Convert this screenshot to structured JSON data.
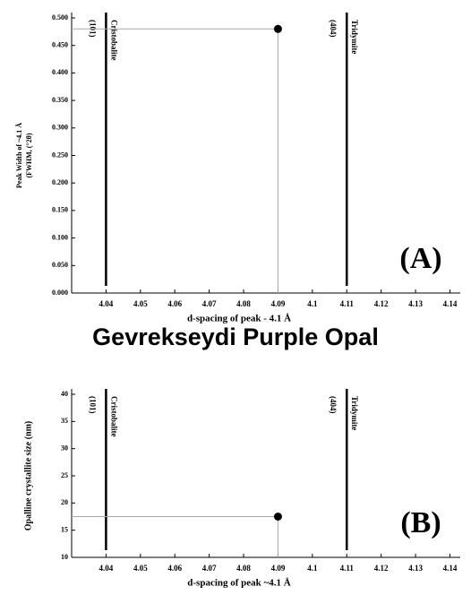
{
  "title": "Gevrekseydi Purple Opal",
  "chart_data": [
    {
      "type": "scatter",
      "annotation": "(A)",
      "ylabel": [
        "Peak Width of ~4.1 Å",
        "(FWHM, (°2θ)"
      ],
      "xlabel": "d-spacing of peak - 4.1 Å",
      "x": [
        4.09
      ],
      "values": [
        0.48
      ],
      "color": "#000000",
      "xlim": [
        4.03,
        4.143
      ],
      "xticks": [
        4.04,
        4.05,
        4.06,
        4.07,
        4.08,
        4.09,
        4.1,
        4.11,
        4.12,
        4.13,
        4.14
      ],
      "ylim": [
        0,
        0.5
      ],
      "yticks": [
        {
          "value": 0,
          "label": "0.000"
        },
        {
          "value": 0.05,
          "label": "0.050"
        },
        {
          "value": 0.1,
          "label": "0.100"
        },
        {
          "value": 0.15,
          "label": "0.150"
        },
        {
          "value": 0.2,
          "label": "0.200"
        },
        {
          "value": 0.25,
          "label": "0.250"
        },
        {
          "value": 0.3,
          "label": "0.300"
        },
        {
          "value": 0.35,
          "label": "0.350"
        },
        {
          "value": 0.4,
          "label": "0.400"
        },
        {
          "value": 0.45,
          "label": "0.450"
        },
        {
          "value": 0.5,
          "label": "0.500"
        }
      ],
      "vlines": [
        {
          "x": 4.04,
          "hkl": "(101)",
          "label": "Cristobalite"
        },
        {
          "x": 4.11,
          "hkl": "(404)",
          "label": "Tridymite"
        }
      ]
    },
    {
      "type": "scatter",
      "annotation": "(B)",
      "ylabel": [
        "Opalline crystallite size (nm)"
      ],
      "xlabel": "d-spacing of peak ~4.1 Å",
      "x": [
        4.09
      ],
      "values": [
        17.5
      ],
      "color": "#000000",
      "xlim": [
        4.03,
        4.143
      ],
      "xticks": [
        4.04,
        4.05,
        4.06,
        4.07,
        4.08,
        4.09,
        4.1,
        4.11,
        4.12,
        4.13,
        4.14
      ],
      "ylim": [
        10,
        40
      ],
      "yticks": [
        10,
        15,
        20,
        25,
        30,
        35,
        40
      ],
      "vlines": [
        {
          "x": 4.04,
          "hkl": "(101)",
          "label": "Cristobalite"
        },
        {
          "x": 4.11,
          "hkl": "(404)",
          "label": "Tridymite"
        }
      ]
    }
  ]
}
